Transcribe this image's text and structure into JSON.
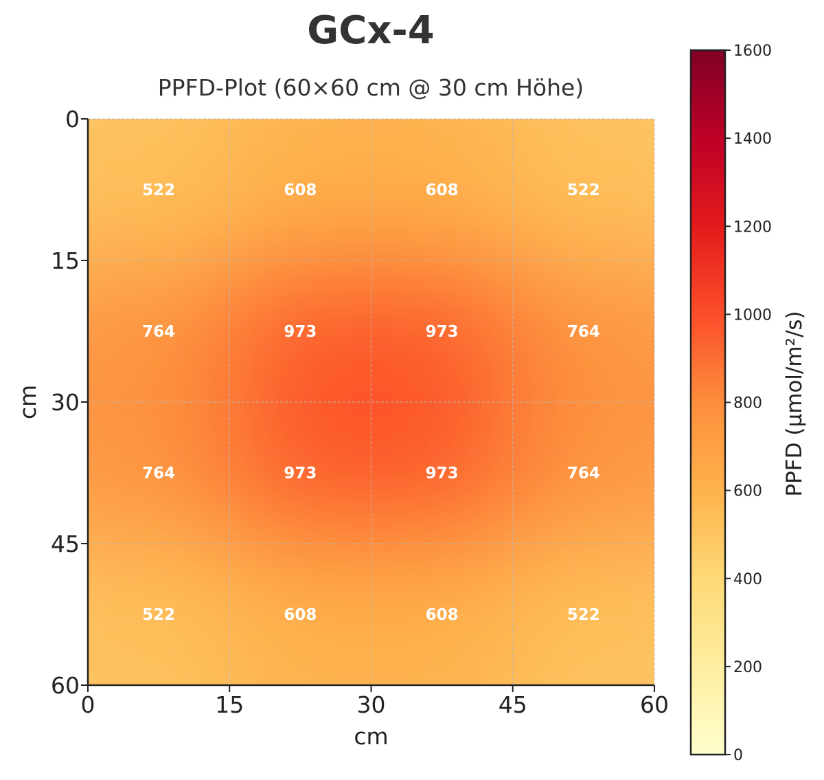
{
  "chart_data": {
    "type": "heatmap",
    "title": "GCx-4",
    "subtitle": "PPFD-Plot (60×60 cm @ 30 cm Höhe)",
    "xlabel": "cm",
    "ylabel": "cm",
    "xlim": [
      0,
      60
    ],
    "ylim": [
      0,
      60
    ],
    "y_axis_inverted": true,
    "x_ticks": [
      "0",
      "15",
      "30",
      "45",
      "60"
    ],
    "y_ticks": [
      "0",
      "15",
      "30",
      "45",
      "60"
    ],
    "grid": true,
    "rows": [
      [
        522,
        608,
        608,
        522
      ],
      [
        764,
        973,
        973,
        764
      ],
      [
        764,
        973,
        973,
        764
      ],
      [
        522,
        608,
        608,
        522
      ]
    ],
    "colorbar": {
      "label": "PPFD (µmol/m²/s)",
      "min": 0,
      "max": 1600,
      "ticks": [
        "0",
        "200",
        "400",
        "600",
        "800",
        "1000",
        "1200",
        "1400",
        "1600"
      ],
      "colors": [
        "#ffffcc",
        "#ffeda0",
        "#fed976",
        "#feb24c",
        "#fd8d3c",
        "#fc4e2a",
        "#e31a1c",
        "#bd0026",
        "#800026"
      ]
    }
  }
}
